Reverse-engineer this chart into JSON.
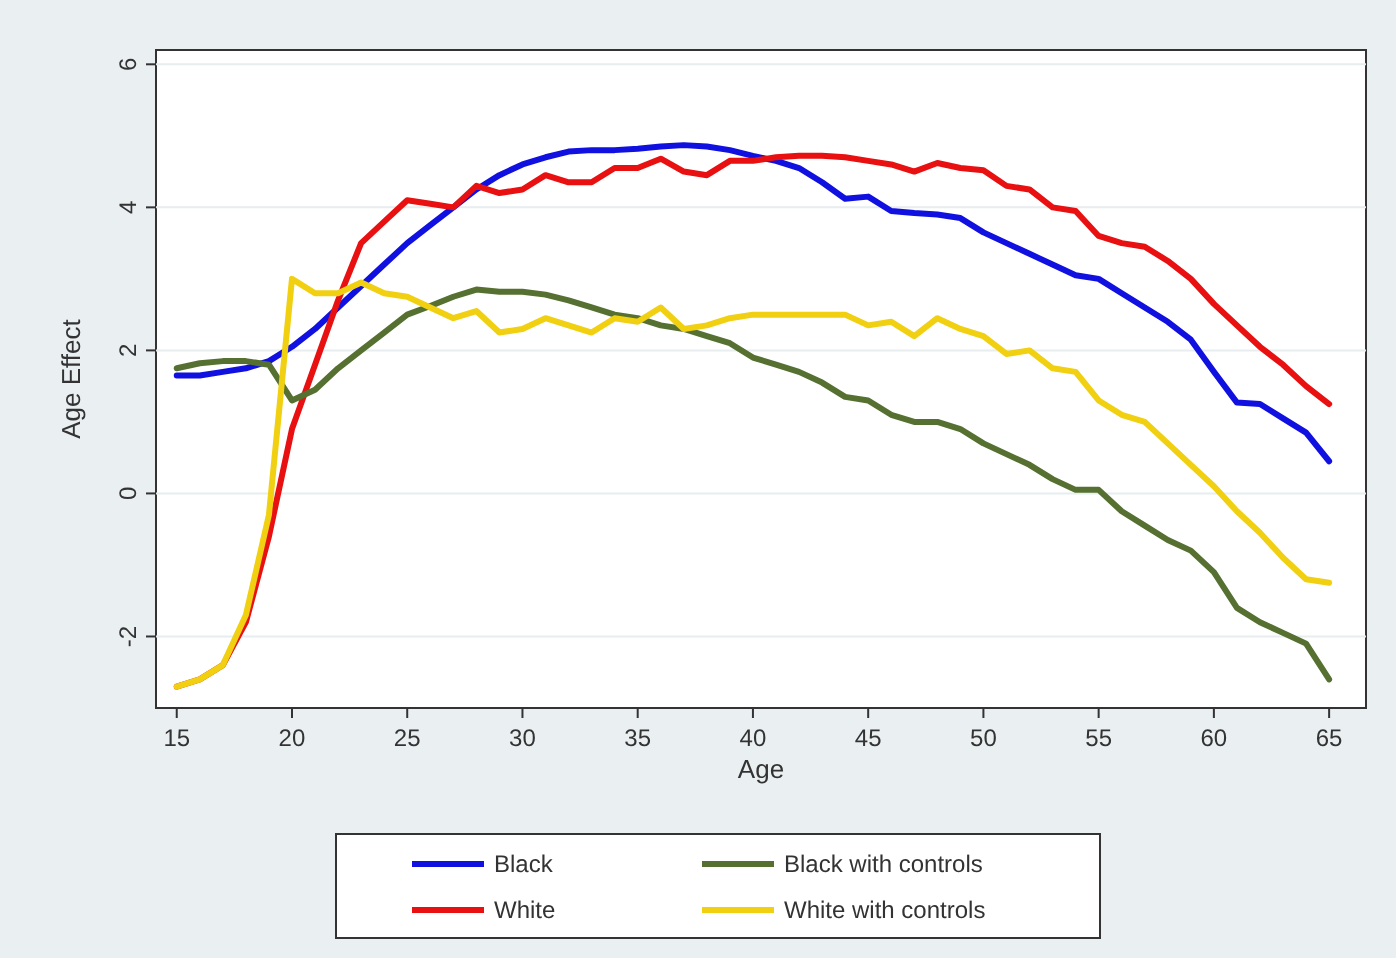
{
  "chart_data": {
    "type": "line",
    "xlabel": "Age",
    "ylabel": "Age Effect",
    "x": [
      15,
      16,
      17,
      18,
      19,
      20,
      21,
      22,
      23,
      24,
      25,
      26,
      27,
      28,
      29,
      30,
      31,
      32,
      33,
      34,
      35,
      36,
      37,
      38,
      39,
      40,
      41,
      42,
      43,
      44,
      45,
      46,
      47,
      48,
      49,
      50,
      51,
      52,
      53,
      54,
      55,
      56,
      57,
      58,
      59,
      60,
      61,
      62,
      63,
      64,
      65
    ],
    "xlim": [
      14.1,
      66.6
    ],
    "xticks": [
      15,
      20,
      25,
      30,
      35,
      40,
      45,
      50,
      55,
      60,
      65
    ],
    "ylim": [
      -3,
      6.2
    ],
    "yticks": [
      -2,
      0,
      2,
      4,
      6
    ],
    "grid": "y",
    "legend": "bottom",
    "marker": "none",
    "line_style": "solid",
    "series": [
      {
        "name": "Black",
        "color": "#1010e0",
        "values": [
          1.65,
          1.65,
          1.7,
          1.75,
          1.85,
          2.05,
          2.3,
          2.6,
          2.9,
          3.2,
          3.5,
          3.75,
          4.0,
          4.25,
          4.45,
          4.6,
          4.7,
          4.78,
          4.8,
          4.8,
          4.82,
          4.85,
          4.87,
          4.85,
          4.8,
          4.72,
          4.65,
          4.55,
          4.35,
          4.12,
          4.15,
          3.95,
          3.92,
          3.9,
          3.85,
          3.65,
          3.5,
          3.35,
          3.2,
          3.05,
          3.0,
          2.8,
          2.6,
          2.4,
          2.15,
          1.7,
          1.27,
          1.25,
          1.05,
          0.85,
          0.45
        ]
      },
      {
        "name": "White",
        "color": "#e81010",
        "values": [
          -2.7,
          -2.6,
          -2.4,
          -1.8,
          -0.6,
          0.9,
          1.8,
          2.7,
          3.5,
          3.8,
          4.1,
          4.05,
          4.0,
          4.3,
          4.2,
          4.25,
          4.45,
          4.35,
          4.35,
          4.55,
          4.55,
          4.68,
          4.5,
          4.45,
          4.65,
          4.65,
          4.7,
          4.72,
          4.72,
          4.7,
          4.65,
          4.6,
          4.5,
          4.62,
          4.55,
          4.52,
          4.3,
          4.25,
          4.0,
          3.95,
          3.6,
          3.5,
          3.45,
          3.25,
          3.0,
          2.65,
          2.35,
          2.05,
          1.8,
          1.5,
          1.25
        ]
      },
      {
        "name": "Black with controls",
        "color": "#557030",
        "values": [
          1.75,
          1.82,
          1.85,
          1.85,
          1.8,
          1.3,
          1.45,
          1.75,
          2.0,
          2.25,
          2.5,
          2.62,
          2.75,
          2.85,
          2.82,
          2.82,
          2.78,
          2.7,
          2.6,
          2.5,
          2.45,
          2.35,
          2.3,
          2.2,
          2.1,
          1.9,
          1.8,
          1.7,
          1.55,
          1.35,
          1.3,
          1.1,
          1.0,
          1.0,
          0.9,
          0.7,
          0.55,
          0.4,
          0.2,
          0.05,
          0.05,
          -0.25,
          -0.45,
          -0.65,
          -0.8,
          -1.1,
          -1.6,
          -1.8,
          -1.95,
          -2.1,
          -2.6
        ]
      },
      {
        "name": "White with controls",
        "color": "#f0d010",
        "values": [
          -2.7,
          -2.6,
          -2.4,
          -1.7,
          -0.3,
          3.0,
          2.8,
          2.8,
          2.95,
          2.8,
          2.75,
          2.6,
          2.45,
          2.55,
          2.25,
          2.3,
          2.45,
          2.35,
          2.25,
          2.45,
          2.4,
          2.6,
          2.3,
          2.35,
          2.45,
          2.5,
          2.5,
          2.5,
          2.5,
          2.5,
          2.35,
          2.4,
          2.2,
          2.45,
          2.3,
          2.2,
          1.95,
          2.0,
          1.75,
          1.7,
          1.3,
          1.1,
          1.0,
          0.7,
          0.4,
          0.1,
          -0.25,
          -0.55,
          -0.9,
          -1.2,
          -1.25
        ]
      }
    ]
  }
}
